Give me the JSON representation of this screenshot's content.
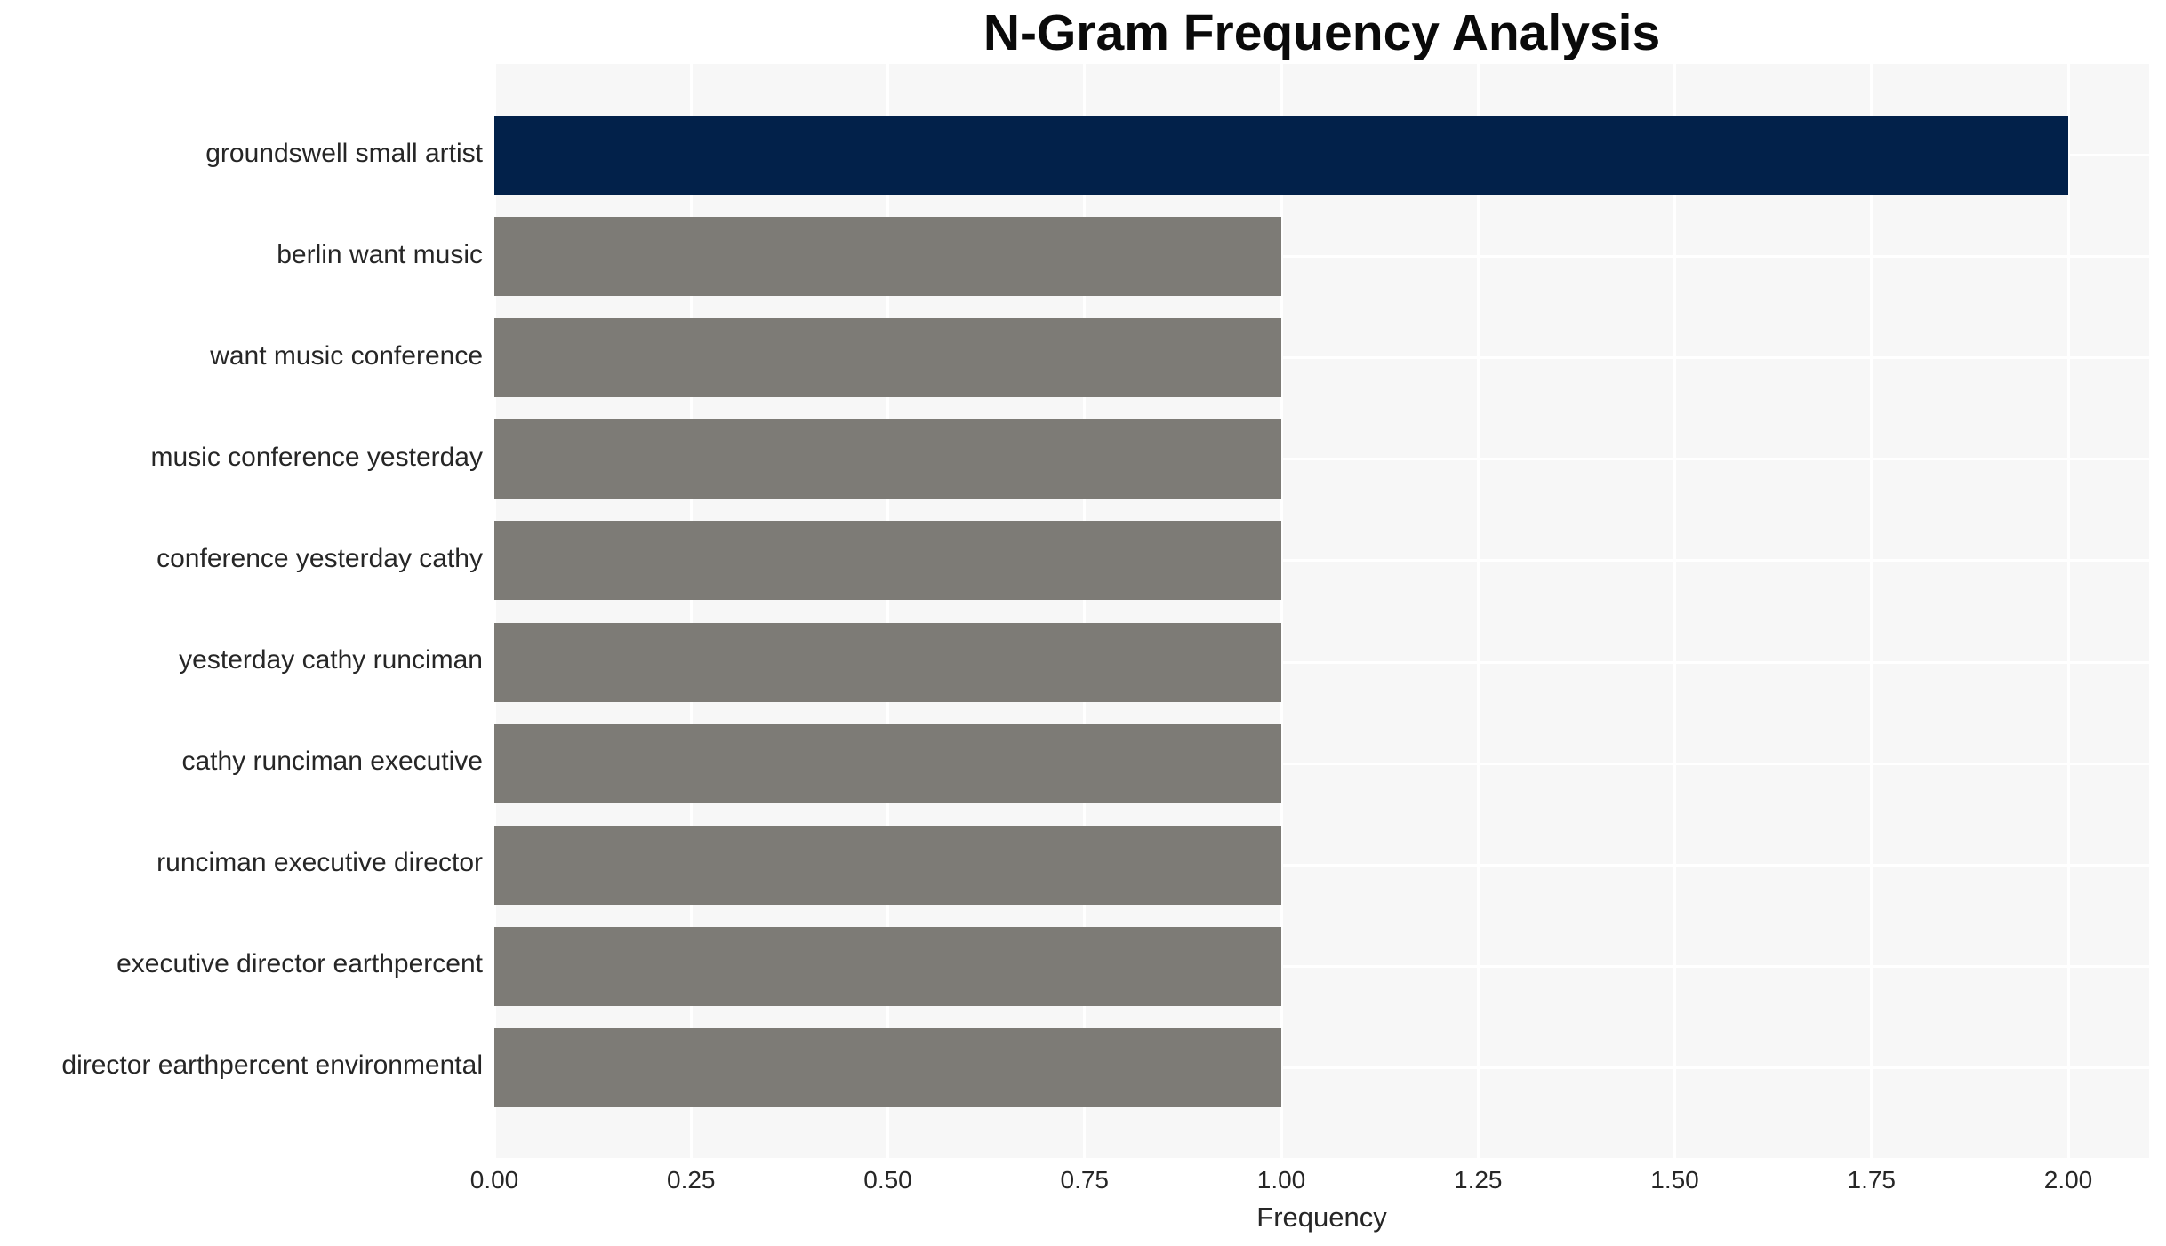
{
  "chart_data": {
    "type": "bar",
    "orientation": "horizontal",
    "title": "N-Gram Frequency Analysis",
    "xlabel": "Frequency",
    "ylabel": "",
    "categories": [
      "groundswell small artist",
      "berlin want music",
      "want music conference",
      "music conference yesterday",
      "conference yesterday cathy",
      "yesterday cathy runciman",
      "cathy runciman executive",
      "runciman executive director",
      "executive director earthpercent",
      "director earthpercent environmental"
    ],
    "values": [
      2,
      1,
      1,
      1,
      1,
      1,
      1,
      1,
      1,
      1
    ],
    "bar_colors": [
      "#02214a",
      "#7d7b76",
      "#7d7b76",
      "#7d7b76",
      "#7d7b76",
      "#7d7b76",
      "#7d7b76",
      "#7d7b76",
      "#7d7b76",
      "#7d7b76"
    ],
    "xlim": [
      0,
      2.1
    ],
    "xticks": [
      0,
      0.25,
      0.5,
      0.75,
      1,
      1.25,
      1.5,
      1.75,
      2
    ],
    "xtick_labels": [
      "0.00",
      "0.25",
      "0.50",
      "0.75",
      "1.00",
      "1.25",
      "1.50",
      "1.75",
      "2.00"
    ],
    "grid": true,
    "legend": false,
    "layout_hints": {
      "gridline_interval": 0.25,
      "grid_on_both_axes": true,
      "highlight_index": 0
    },
    "colors": {
      "highlight_bar": "#02214a",
      "default_bar": "#7d7b76",
      "panel_background": "#f7f7f7",
      "gridline": "#ffffff",
      "axis_text": "#262626",
      "title_text": "#0a0a0a",
      "page_background": "#ffffff"
    }
  }
}
